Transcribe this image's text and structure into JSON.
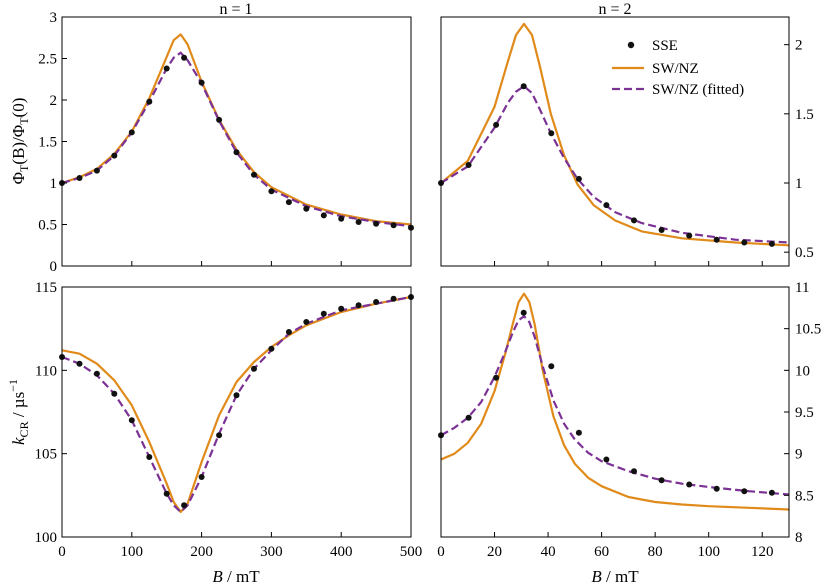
{
  "colors": {
    "sse": "#111111",
    "swnz": "#E08A1A",
    "fitted": "#7B3294",
    "axis": "#000000"
  },
  "legend": {
    "entries": [
      "SSE",
      "SW/NZ",
      "SW/NZ (fitted)"
    ],
    "placement": "top-right of n = 2 top panel"
  },
  "x_label_parts": [
    "B",
    " / mT"
  ],
  "y_label_top": {
    "a": "Φ",
    "b": "T",
    "c": "(B)/Φ",
    "d": "T",
    "e": "(0)"
  },
  "y_label_bottom": {
    "a": "k",
    "b": "CR",
    "c": " / µs",
    "d": "−1"
  },
  "chart_data": [
    {
      "type": "line",
      "title": "n = 1",
      "panel": "top-left",
      "xlim": [
        0,
        500
      ],
      "ylim": [
        0,
        3
      ],
      "xticks": [],
      "yticks": [
        0,
        0.5,
        1,
        1.5,
        2,
        2.5,
        3
      ],
      "ytick_labels": [
        "0",
        "0.5",
        "1",
        "1.5",
        "2",
        "2.5",
        "3"
      ],
      "yaxis_side": "left",
      "series": [
        {
          "name": "SSE",
          "style": "points",
          "x": [
            0,
            25,
            50,
            75,
            100,
            125,
            150,
            175,
            200,
            225,
            250,
            275,
            300,
            325,
            350,
            375,
            400,
            425,
            450,
            475,
            500
          ],
          "y": [
            1.0,
            1.06,
            1.15,
            1.33,
            1.61,
            1.98,
            2.38,
            2.51,
            2.21,
            1.76,
            1.37,
            1.1,
            0.9,
            0.77,
            0.69,
            0.61,
            0.57,
            0.53,
            0.51,
            0.49,
            0.46
          ]
        },
        {
          "name": "SW/NZ",
          "style": "solid",
          "x": [
            0,
            25,
            50,
            75,
            100,
            125,
            150,
            160,
            170,
            180,
            200,
            225,
            250,
            275,
            300,
            350,
            400,
            450,
            500
          ],
          "y": [
            1.0,
            1.07,
            1.17,
            1.35,
            1.62,
            2.02,
            2.52,
            2.72,
            2.79,
            2.67,
            2.22,
            1.76,
            1.4,
            1.13,
            0.95,
            0.74,
            0.62,
            0.54,
            0.5
          ]
        },
        {
          "name": "SW/NZ (fitted)",
          "style": "dashed",
          "x": [
            0,
            25,
            50,
            75,
            100,
            125,
            150,
            160,
            170,
            180,
            200,
            225,
            250,
            275,
            300,
            350,
            400,
            450,
            500
          ],
          "y": [
            1.0,
            1.06,
            1.15,
            1.33,
            1.61,
            1.98,
            2.38,
            2.51,
            2.57,
            2.48,
            2.2,
            1.75,
            1.37,
            1.1,
            0.92,
            0.72,
            0.6,
            0.53,
            0.48
          ]
        }
      ]
    },
    {
      "type": "line",
      "title": "n = 2",
      "panel": "top-right",
      "xlim": [
        0,
        130
      ],
      "ylim": [
        0.4,
        2.2
      ],
      "xticks": [],
      "yticks": [
        0.5,
        1,
        1.5,
        2
      ],
      "ytick_labels": [
        "0.5",
        "1",
        "1.5",
        "2"
      ],
      "yaxis_side": "right",
      "series": [
        {
          "name": "SSE",
          "style": "points",
          "x": [
            0,
            10.3,
            20.6,
            30.9,
            41.2,
            51.5,
            61.8,
            72.1,
            82.4,
            92.7,
            103,
            113.3,
            123.6
          ],
          "y": [
            1.0,
            1.13,
            1.42,
            1.7,
            1.36,
            1.03,
            0.84,
            0.73,
            0.66,
            0.62,
            0.59,
            0.57,
            0.56
          ]
        },
        {
          "name": "SW/NZ",
          "style": "solid",
          "x": [
            0,
            10,
            20,
            25,
            28,
            31,
            34,
            37,
            41,
            46,
            51,
            57,
            65,
            75,
            90,
            110,
            130
          ],
          "y": [
            1.0,
            1.16,
            1.55,
            1.88,
            2.07,
            2.15,
            2.07,
            1.84,
            1.5,
            1.2,
            0.99,
            0.84,
            0.73,
            0.65,
            0.6,
            0.57,
            0.55
          ]
        },
        {
          "name": "SW/NZ (fitted)",
          "style": "dashed",
          "x": [
            0,
            10,
            20,
            25,
            28,
            31,
            34,
            37,
            41,
            46,
            51,
            57,
            65,
            75,
            90,
            110,
            130
          ],
          "y": [
            1.0,
            1.12,
            1.4,
            1.58,
            1.66,
            1.7,
            1.65,
            1.53,
            1.36,
            1.18,
            1.03,
            0.9,
            0.79,
            0.71,
            0.64,
            0.59,
            0.57
          ]
        }
      ]
    },
    {
      "type": "line",
      "title": "",
      "panel": "bottom-left",
      "xlim": [
        0,
        500
      ],
      "ylim": [
        100,
        115
      ],
      "xticks": [
        0,
        100,
        200,
        300,
        400,
        500
      ],
      "xtick_labels": [
        "0",
        "100",
        "200",
        "300",
        "400",
        "500"
      ],
      "yticks": [
        100,
        105,
        110,
        115
      ],
      "ytick_labels": [
        "100",
        "105",
        "110",
        "115"
      ],
      "yaxis_side": "left",
      "series": [
        {
          "name": "SSE",
          "style": "points",
          "x": [
            0,
            25,
            50,
            75,
            100,
            125,
            150,
            175,
            200,
            225,
            250,
            275,
            300,
            325,
            350,
            375,
            400,
            425,
            450,
            475,
            500
          ],
          "y": [
            110.8,
            110.4,
            109.8,
            108.6,
            107.0,
            104.8,
            102.6,
            101.9,
            103.6,
            106.1,
            108.5,
            110.1,
            111.3,
            112.3,
            112.9,
            113.4,
            113.7,
            113.9,
            114.1,
            114.3,
            114.4
          ]
        },
        {
          "name": "SW/NZ",
          "style": "solid",
          "x": [
            0,
            25,
            50,
            75,
            100,
            125,
            150,
            160,
            170,
            180,
            200,
            225,
            250,
            275,
            300,
            325,
            350,
            400,
            450,
            500
          ],
          "y": [
            111.2,
            111.0,
            110.4,
            109.4,
            107.9,
            105.7,
            103.2,
            102.1,
            101.5,
            102.0,
            104.5,
            107.3,
            109.3,
            110.5,
            111.4,
            112.1,
            112.7,
            113.5,
            114.0,
            114.4
          ]
        },
        {
          "name": "SW/NZ (fitted)",
          "style": "dashed",
          "x": [
            0,
            25,
            50,
            75,
            100,
            125,
            150,
            160,
            170,
            180,
            200,
            225,
            250,
            275,
            300,
            325,
            350,
            400,
            450,
            500
          ],
          "y": [
            110.8,
            110.4,
            109.7,
            108.6,
            107.0,
            104.8,
            102.6,
            101.9,
            101.5,
            101.9,
            103.6,
            106.2,
            108.5,
            110.1,
            111.2,
            112.2,
            112.8,
            113.6,
            114.0,
            114.4
          ]
        }
      ]
    },
    {
      "type": "line",
      "title": "",
      "panel": "bottom-right",
      "xlim": [
        0,
        130
      ],
      "ylim": [
        8,
        11
      ],
      "xticks": [
        0,
        20,
        40,
        60,
        80,
        100,
        120
      ],
      "xtick_labels": [
        "0",
        "20",
        "40",
        "60",
        "80",
        "100",
        "120"
      ],
      "yticks": [
        8,
        8.5,
        9,
        9.5,
        10,
        10.5,
        11
      ],
      "ytick_labels": [
        "8",
        "8.5",
        "9",
        "9.5",
        "10",
        "10.5",
        "11"
      ],
      "yaxis_side": "right",
      "series": [
        {
          "name": "SSE",
          "style": "points",
          "x": [
            0,
            10.3,
            20.6,
            30.9,
            41.2,
            51.5,
            61.8,
            72.1,
            82.4,
            92.7,
            103,
            113.3,
            123.6
          ],
          "y": [
            9.22,
            9.43,
            9.91,
            10.69,
            10.05,
            9.25,
            8.93,
            8.79,
            8.68,
            8.63,
            8.58,
            8.55,
            8.53
          ]
        },
        {
          "name": "SW/NZ",
          "style": "solid",
          "x": [
            0,
            5,
            10,
            15,
            20,
            24,
            27,
            29,
            31,
            33,
            35,
            38,
            42,
            46,
            50,
            55,
            60,
            70,
            80,
            90,
            100,
            115,
            130
          ],
          "y": [
            8.93,
            9.0,
            9.13,
            9.36,
            9.75,
            10.2,
            10.58,
            10.82,
            10.92,
            10.82,
            10.55,
            10.0,
            9.45,
            9.1,
            8.88,
            8.71,
            8.61,
            8.48,
            8.42,
            8.39,
            8.37,
            8.35,
            8.33
          ]
        },
        {
          "name": "SW/NZ (fitted)",
          "style": "dashed",
          "x": [
            0,
            5,
            10,
            15,
            20,
            24,
            27,
            29,
            31,
            33,
            35,
            38,
            42,
            46,
            50,
            55,
            60,
            70,
            80,
            90,
            100,
            115,
            130
          ],
          "y": [
            9.22,
            9.31,
            9.43,
            9.62,
            9.92,
            10.22,
            10.47,
            10.6,
            10.65,
            10.58,
            10.4,
            10.05,
            9.64,
            9.36,
            9.17,
            9.01,
            8.91,
            8.79,
            8.7,
            8.64,
            8.6,
            8.55,
            8.51
          ]
        }
      ]
    }
  ]
}
